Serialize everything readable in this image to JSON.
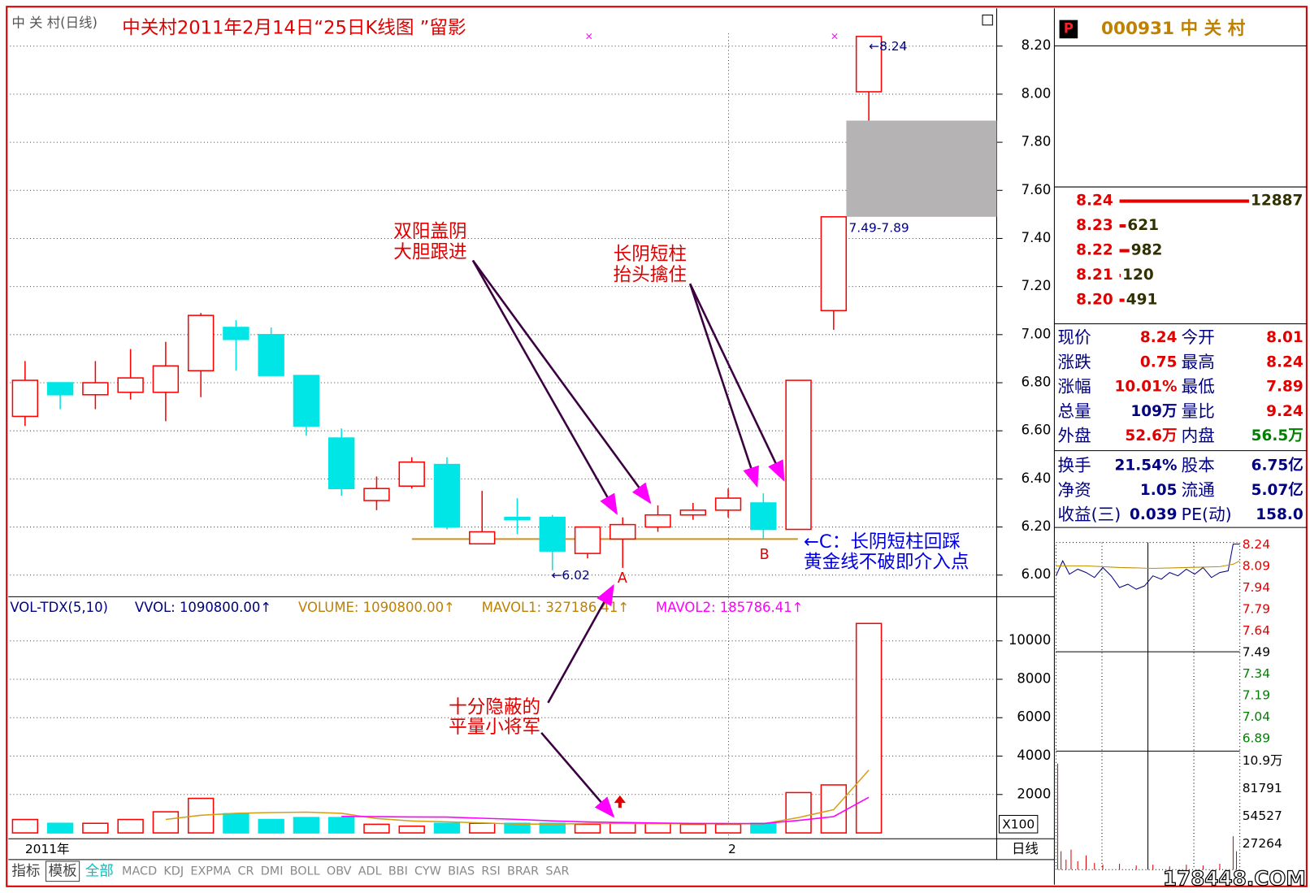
{
  "chart_data": [
    {
      "type": "candlestick",
      "title": "中关村2011年2月14日“25日K线图 ”留影",
      "subtitle": "中 关 村(日线)",
      "categories": [
        "2011年",
        null,
        null,
        null,
        null,
        null,
        null,
        null,
        null,
        null,
        null,
        null,
        null,
        null,
        null,
        null,
        null,
        null,
        null,
        null,
        "2",
        null,
        null,
        null,
        null
      ],
      "open": [
        6.66,
        6.8,
        6.75,
        6.76,
        6.76,
        6.85,
        7.03,
        7.0,
        6.83,
        6.57,
        6.31,
        6.37,
        6.46,
        6.13,
        6.24,
        6.24,
        6.09,
        6.15,
        6.2,
        6.25,
        6.27,
        6.3,
        6.19,
        7.1,
        8.01
      ],
      "high": [
        6.89,
        6.8,
        6.89,
        6.94,
        6.97,
        7.09,
        7.06,
        7.03,
        6.83,
        6.61,
        6.41,
        6.49,
        6.49,
        6.35,
        6.32,
        6.25,
        6.2,
        6.24,
        6.29,
        6.3,
        6.36,
        6.34,
        6.81,
        7.49,
        8.24
      ],
      "low": [
        6.62,
        6.69,
        6.69,
        6.73,
        6.64,
        6.74,
        6.85,
        6.83,
        6.58,
        6.33,
        6.27,
        6.36,
        6.19,
        6.13,
        6.17,
        6.02,
        6.07,
        6.03,
        6.18,
        6.23,
        6.24,
        6.15,
        6.19,
        7.02,
        7.89
      ],
      "close": [
        6.81,
        6.75,
        6.8,
        6.82,
        6.87,
        7.08,
        6.98,
        6.83,
        6.62,
        6.36,
        6.36,
        6.47,
        6.2,
        6.18,
        6.23,
        6.1,
        6.2,
        6.21,
        6.25,
        6.27,
        6.32,
        6.19,
        6.81,
        7.49,
        8.24
      ],
      "up_color": "#ff0000",
      "down_color": "#00e5e5",
      "ylim": [
        5.91,
        8.35
      ],
      "yticks": [
        {
          "value": 6.0,
          "label": "6.00"
        },
        {
          "value": 6.2,
          "label": "6.20"
        },
        {
          "value": 6.4,
          "label": "6.40"
        },
        {
          "value": 6.6,
          "label": "6.60"
        },
        {
          "value": 6.8,
          "label": "6.80"
        },
        {
          "value": 7.0,
          "label": "7.00"
        },
        {
          "value": 7.2,
          "label": "7.20"
        },
        {
          "value": 7.4,
          "label": "7.40"
        },
        {
          "value": 7.6,
          "label": "7.60"
        },
        {
          "value": 7.8,
          "label": "7.80"
        },
        {
          "value": 8.0,
          "label": "8.00"
        },
        {
          "value": 8.2,
          "label": "8.20"
        }
      ],
      "grid": true,
      "zone": {
        "range": [
          7.49,
          7.89
        ],
        "label": "7.49-7.89",
        "color": "#b5b3b4"
      },
      "gold_line": {
        "value": 6.15,
        "color": "#d09020"
      },
      "annotations": [
        {
          "lines": [
            "双阳盖阴",
            "大胆跟进"
          ],
          "color": "#e00000"
        },
        {
          "lines": [
            "长阴短柱",
            "抬头擒住"
          ],
          "color": "#e00000"
        },
        {
          "lines": [
            "十分隐蔽的",
            "平量小将军"
          ],
          "color": "#e00000"
        },
        {
          "lines": [
            "←C：长阴短柱回踩",
            "黄金线不破即介入点"
          ],
          "color": "#0000e0"
        },
        {
          "lines": [
            "A"
          ],
          "color": "#e00000"
        },
        {
          "lines": [
            "B"
          ],
          "color": "#e00000"
        },
        {
          "lines": [
            "←6.02"
          ],
          "color": "#000080"
        },
        {
          "lines": [
            "←8.24"
          ],
          "color": "#000080"
        }
      ],
      "period_label": "日线"
    },
    {
      "type": "bar",
      "header": [
        {
          "text": "VOL-TDX(5,10)",
          "color": "#000080"
        },
        {
          "text": "VVOL: 1090800.00↑",
          "color": "#000080"
        },
        {
          "text": "VOLUME: 1090800.00↑",
          "color": "#c08000"
        },
        {
          "text": "MAVOL1: 327186.41↑",
          "color": "#c08000"
        },
        {
          "text": "MAVOL2: 185786.41↑",
          "color": "#ff00ff"
        }
      ],
      "series": [
        {
          "values": [
            700,
            500,
            500,
            700,
            1100,
            1800,
            1000,
            700,
            800,
            800,
            450,
            350,
            500,
            500,
            500,
            500,
            450,
            500,
            500,
            450,
            450,
            500,
            2100,
            2500,
            10908
          ]
        },
        {
          "color": "#d4a017",
          "values": [
            null,
            null,
            null,
            null,
            700,
            920,
            1020,
            1060,
            1080,
            1020,
            750,
            620,
            580,
            520,
            460,
            460,
            490,
            490,
            480,
            480,
            470,
            480,
            800,
            1210,
            3271.86
          ]
        },
        {
          "color": "#ff00ff",
          "values": [
            null,
            null,
            null,
            null,
            null,
            null,
            null,
            null,
            null,
            860,
            845,
            830,
            825,
            765,
            705,
            625,
            570,
            545,
            515,
            495,
            490,
            490,
            650,
            850,
            1857.86
          ]
        }
      ],
      "ylim": [
        0,
        12300
      ],
      "yticks": [
        2000,
        4000,
        6000,
        8000,
        10000
      ],
      "unit_label": "X100",
      "grid": true
    }
  ],
  "quote_panel": {
    "badge": "P",
    "title": "000931 中 关 村",
    "order_book": [
      {
        "price": "8.24",
        "volume": 12887
      },
      {
        "price": "8.23",
        "volume": 621
      },
      {
        "price": "8.22",
        "volume": 982
      },
      {
        "price": "8.21",
        "volume": 120
      },
      {
        "price": "8.20",
        "volume": 491
      }
    ],
    "stats": [
      {
        "cells": [
          "现价",
          "8.24",
          "今开",
          "8.01"
        ],
        "colors": [
          "#e00000",
          "#e00000"
        ]
      },
      {
        "cells": [
          "涨跌",
          "0.75",
          "最高",
          "8.24"
        ],
        "colors": [
          "#e00000",
          "#e00000"
        ]
      },
      {
        "cells": [
          "涨幅",
          "10.01%",
          "最低",
          "7.89"
        ],
        "colors": [
          "#e00000",
          "#e00000"
        ]
      },
      {
        "cells": [
          "总量",
          "109万",
          "量比",
          "9.24"
        ],
        "colors": [
          "#000080",
          "#e00000"
        ]
      },
      {
        "cells": [
          "外盘",
          "52.6万",
          "内盘",
          "56.5万"
        ],
        "colors": [
          "#e00000",
          "#008000"
        ]
      },
      {
        "cells": [
          "换手",
          "21.54%",
          "股本",
          "6.75亿"
        ],
        "colors": [
          "#000080",
          "#000080"
        ]
      },
      {
        "cells": [
          "净资",
          "1.05",
          "流通",
          "5.07亿"
        ],
        "colors": [
          "#000080",
          "#000080"
        ]
      },
      {
        "cells": [
          "收益(三)",
          "0.039",
          "PE(动)",
          "158.0"
        ],
        "colors": [
          "#000080",
          "#000080"
        ]
      }
    ],
    "mini_price_labels": [
      {
        "text": "8.24",
        "color": "#e00000"
      },
      {
        "text": "8.09",
        "color": "#e00000"
      },
      {
        "text": "7.94",
        "color": "#e00000"
      },
      {
        "text": "7.79",
        "color": "#e00000"
      },
      {
        "text": "7.64",
        "color": "#e00000"
      },
      {
        "text": "7.49",
        "color": "#000000"
      },
      {
        "text": "7.34",
        "color": "#008000"
      },
      {
        "text": "7.19",
        "color": "#008000"
      },
      {
        "text": "7.04",
        "color": "#008000"
      },
      {
        "text": "6.89",
        "color": "#008000"
      }
    ],
    "mini_volume_labels": [
      "10.9万",
      "81791",
      "54527",
      "27264"
    ]
  },
  "tabs": [
    "指标",
    "模板",
    "全部",
    "MACD",
    "KDJ",
    "EXPMA",
    "CR",
    "DMI",
    "BOLL",
    "OBV",
    "ADL",
    "BBI",
    "CYW",
    "BIAS",
    "RSI",
    "BRAR",
    "SAR"
  ],
  "watermark": "178448.COM"
}
